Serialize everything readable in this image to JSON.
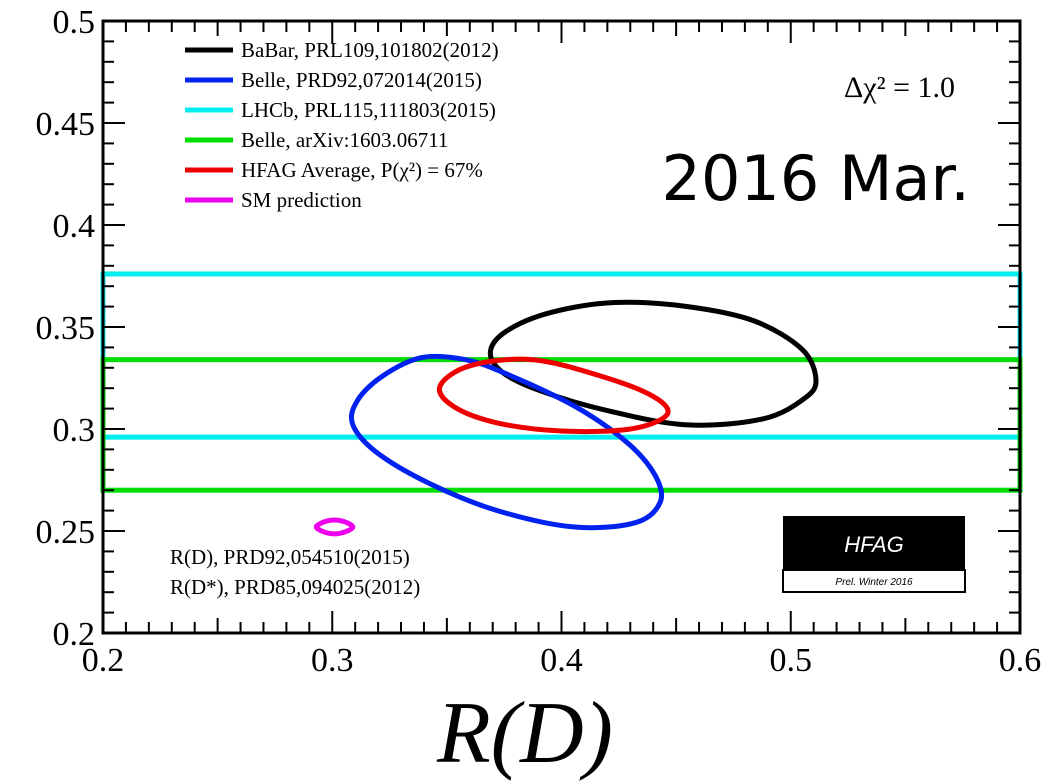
{
  "chart_data": {
    "type": "scatter",
    "xlabel": "R(D)",
    "xlim": [
      0.2,
      0.6
    ],
    "ylim": [
      0.2,
      0.5
    ],
    "x_ticks": [
      "0.2",
      "0.3",
      "0.4",
      "0.5",
      "0.6"
    ],
    "y_ticks": [
      "0.2",
      "0.25",
      "0.3",
      "0.35",
      "0.4",
      "0.45",
      "0.5"
    ],
    "title": "2016 Mar.",
    "annotation": "Δχ² = 1.0",
    "legend_placement": "top-left",
    "legend": [
      {
        "label": "BaBar, PRL109,101802(2012)",
        "color": "#000000"
      },
      {
        "label": "Belle, PRD92,072014(2015)",
        "color": "#0022ee"
      },
      {
        "label": "LHCb, PRL115,111803(2015)",
        "color": "#00eeee"
      },
      {
        "label": "Belle, arXiv:1603.06711",
        "color": "#00dd00"
      },
      {
        "label": "HFAG Average, P(χ²) = 67%",
        "color": "#ee0000"
      },
      {
        "label": "SM prediction",
        "color": "#ee00ee"
      }
    ],
    "ellipses": [
      {
        "series": "BaBar",
        "color": "#000000",
        "points": [
          [
            0.369,
            0.338
          ],
          [
            0.374,
            0.328
          ],
          [
            0.39,
            0.319
          ],
          [
            0.42,
            0.309
          ],
          [
            0.455,
            0.302
          ],
          [
            0.488,
            0.305
          ],
          [
            0.506,
            0.315
          ],
          [
            0.511,
            0.324
          ],
          [
            0.505,
            0.339
          ],
          [
            0.484,
            0.353
          ],
          [
            0.455,
            0.36
          ],
          [
            0.423,
            0.362
          ],
          [
            0.395,
            0.357
          ],
          [
            0.376,
            0.348
          ]
        ]
      },
      {
        "series": "Belle PRD92",
        "color": "#0022ee",
        "points": [
          [
            0.339,
            0.335
          ],
          [
            0.322,
            0.326
          ],
          [
            0.311,
            0.314
          ],
          [
            0.309,
            0.302
          ],
          [
            0.32,
            0.288
          ],
          [
            0.343,
            0.273
          ],
          [
            0.372,
            0.26
          ],
          [
            0.405,
            0.252
          ],
          [
            0.432,
            0.254
          ],
          [
            0.443,
            0.264
          ],
          [
            0.441,
            0.277
          ],
          [
            0.429,
            0.293
          ],
          [
            0.406,
            0.311
          ],
          [
            0.376,
            0.327
          ],
          [
            0.358,
            0.334
          ]
        ]
      },
      {
        "series": "HFAG Average",
        "color": "#ee0000",
        "points": [
          [
            0.347,
            0.321
          ],
          [
            0.353,
            0.311
          ],
          [
            0.372,
            0.303
          ],
          [
            0.4,
            0.299
          ],
          [
            0.43,
            0.3
          ],
          [
            0.446,
            0.307
          ],
          [
            0.44,
            0.316
          ],
          [
            0.417,
            0.326
          ],
          [
            0.387,
            0.334
          ],
          [
            0.36,
            0.331
          ]
        ]
      },
      {
        "series": "SM prediction",
        "color": "#ee00ee",
        "points": [
          [
            0.293,
            0.252
          ],
          [
            0.298,
            0.249
          ],
          [
            0.304,
            0.249
          ],
          [
            0.309,
            0.252
          ],
          [
            0.304,
            0.255
          ],
          [
            0.298,
            0.255
          ]
        ]
      }
    ],
    "bands": [
      {
        "series": "LHCb",
        "color": "#00eeee",
        "x": [
          0.2,
          0.6
        ],
        "y": [
          0.296,
          0.376
        ]
      },
      {
        "series": "Belle arXiv",
        "color": "#00dd00",
        "x": [
          0.2,
          0.6
        ],
        "y": [
          0.27,
          0.334
        ]
      }
    ],
    "sm_references": [
      "R(D), PRD92,054510(2015)",
      "R(D*), PRD85,094025(2012)"
    ]
  },
  "badge": {
    "main": "HFAG",
    "sub": "Prel. Winter 2016"
  },
  "colors": {
    "background": "#ffffff",
    "frame": "#000000"
  }
}
